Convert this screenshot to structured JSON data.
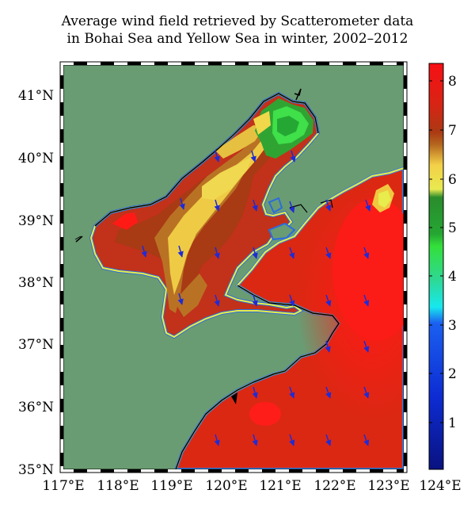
{
  "title": {
    "line1": "Average wind field retrieved by Scatterometer data",
    "line2": "in Bohai Sea and Yellow Sea in winter, 2002–2012"
  },
  "map": {
    "lat_labels": [
      "41°N",
      "40°N",
      "39°N",
      "38°N",
      "37°N",
      "36°N",
      "35°N"
    ],
    "lon_labels": [
      "117°E",
      "118°E",
      "119°E",
      "120°E",
      "121°E",
      "122°E",
      "123°E",
      "124°E"
    ],
    "land_color": "#6a9c73",
    "wind_arrow_color": "#1f2bd6"
  },
  "colorbar": {
    "ticks": [
      "8",
      "7",
      "6",
      "5",
      "4",
      "3",
      "2",
      "1"
    ],
    "colors": [
      "#f80f14",
      "#ca2a14",
      "#a83b13",
      "#b86b24",
      "#dc9b35",
      "#f0d24a",
      "#e4f04a",
      "#38a336",
      "#1f9d30",
      "#35e03d",
      "#28c8b0",
      "#13e6f0",
      "#1a64f0",
      "#1033d8",
      "#0d1fb0",
      "#0a1483"
    ]
  }
}
